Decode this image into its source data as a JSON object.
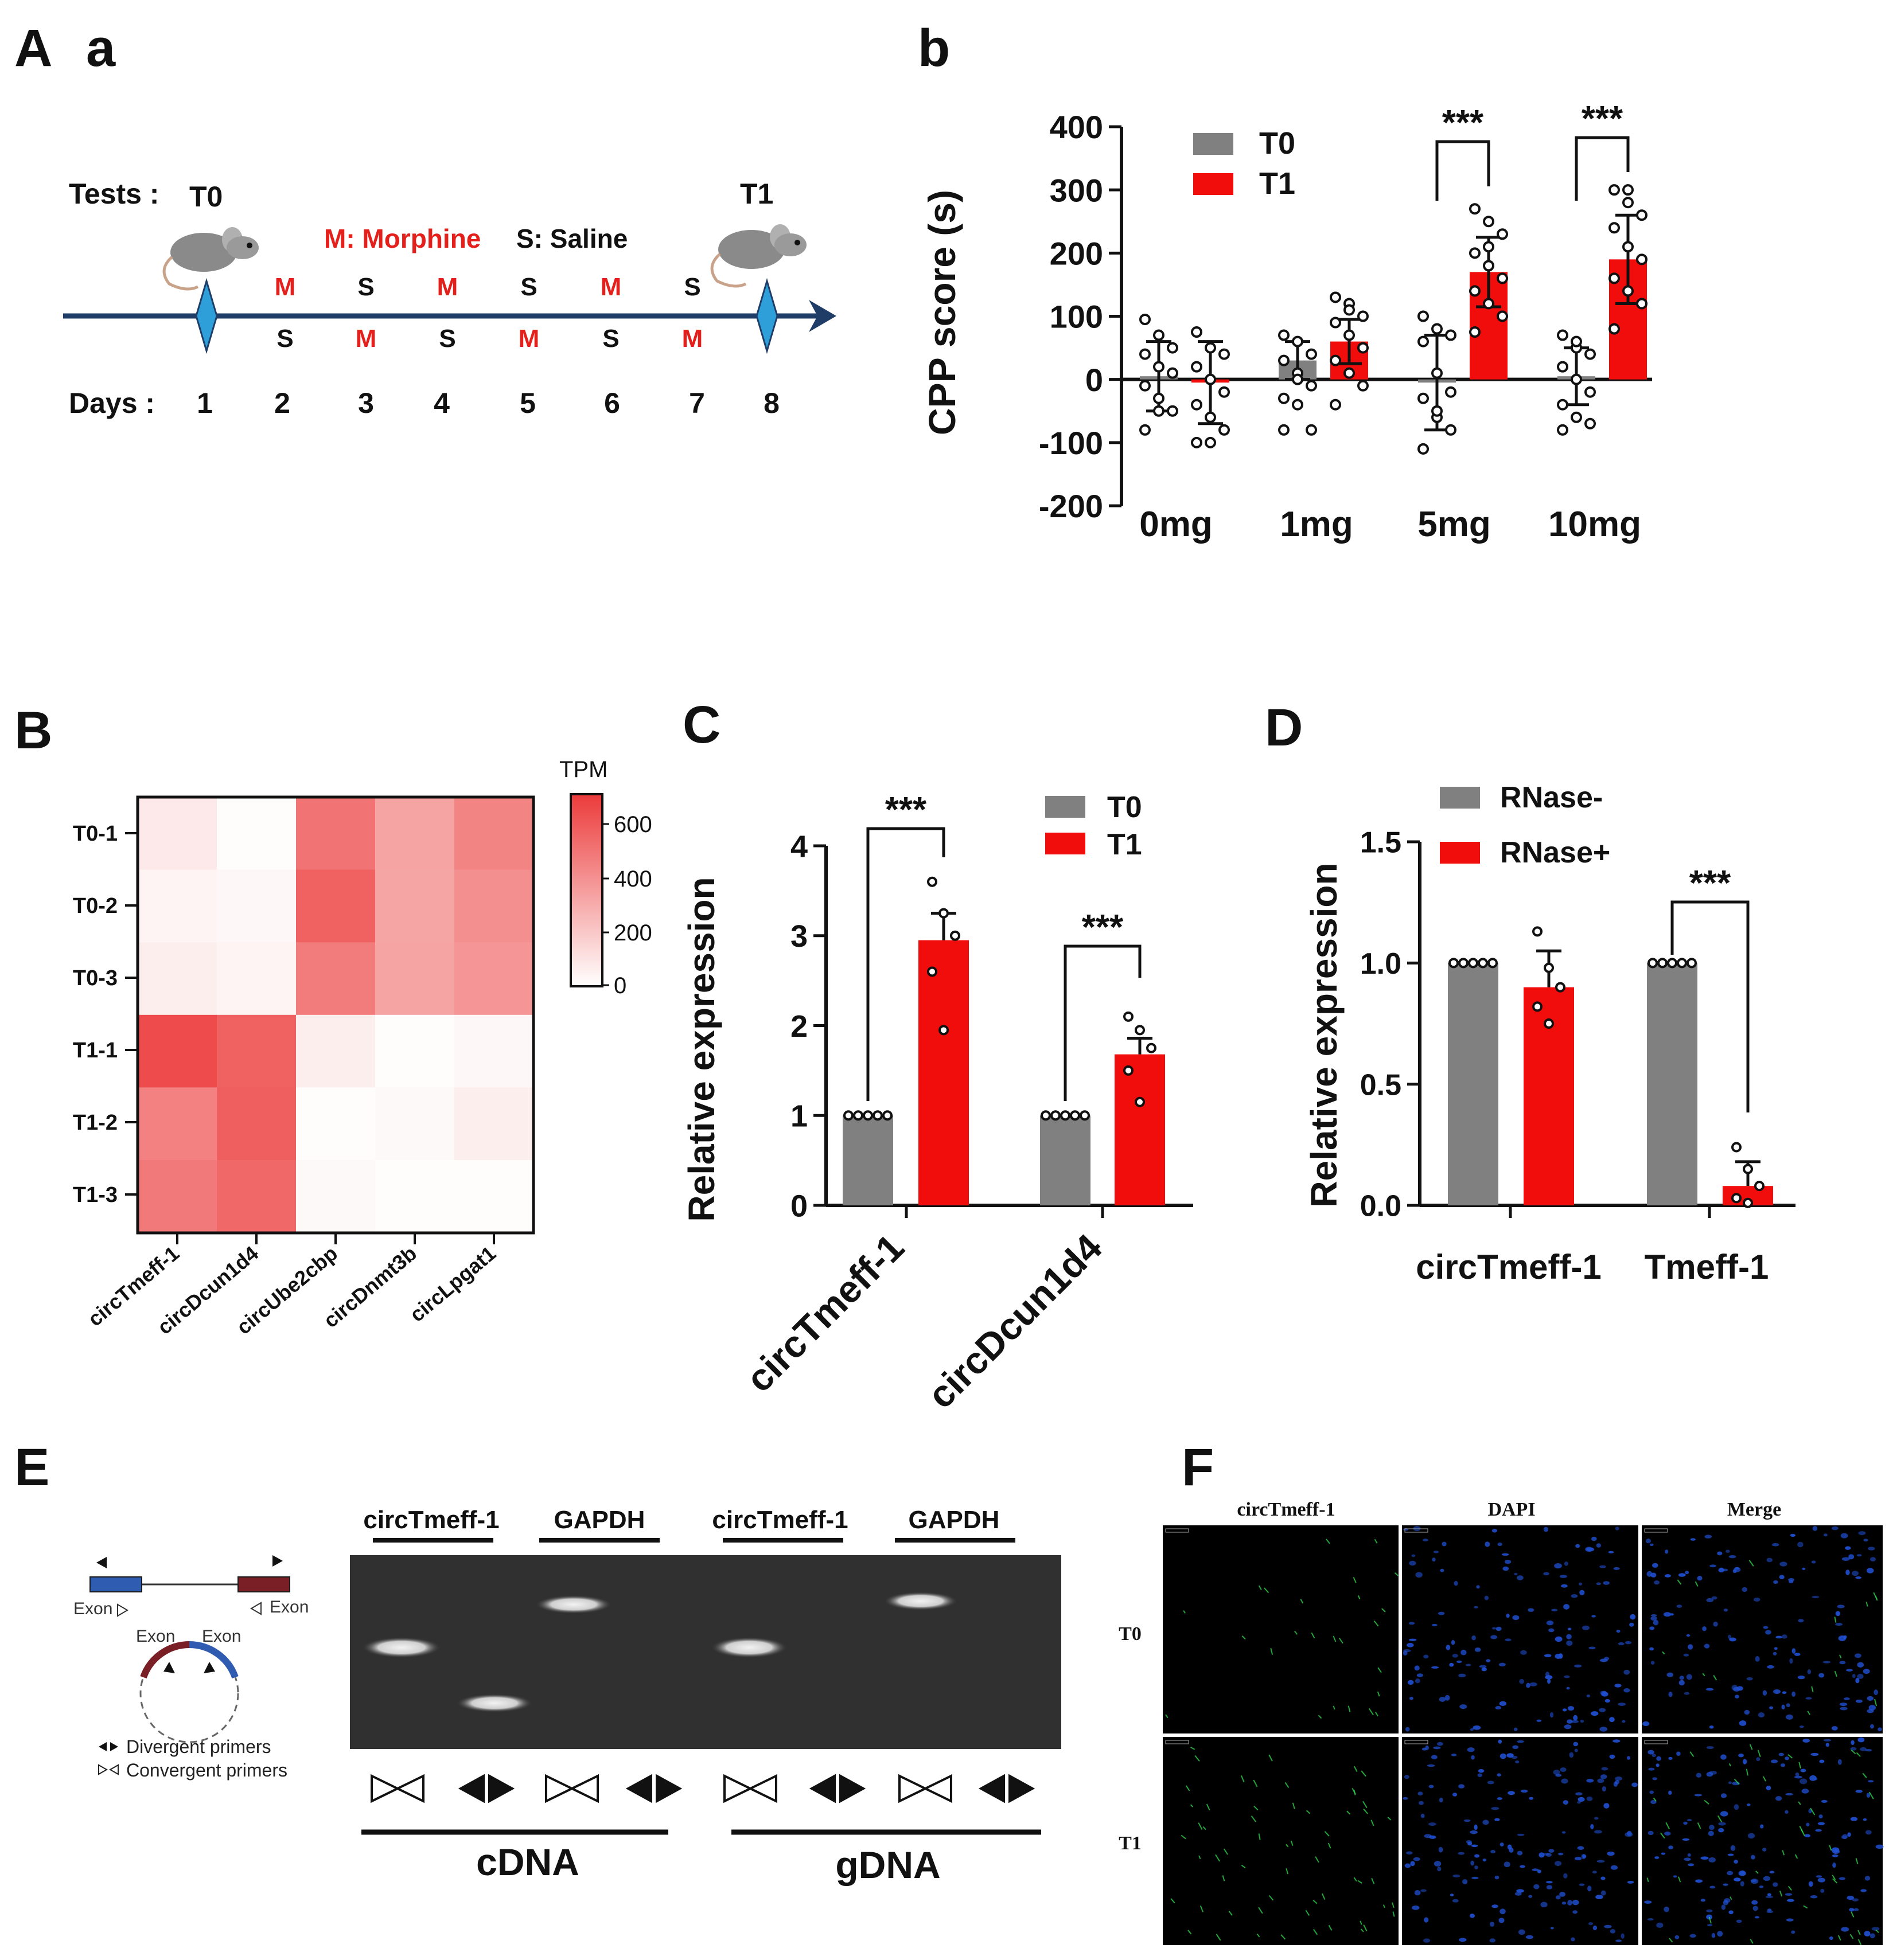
{
  "colors": {
    "t0": "#808080",
    "t1": "#f20d0d",
    "arrow": "#1f3d66",
    "diamond": "#2e9fd8",
    "red_text": "#e3201b",
    "heat_high": "#ec3b3b"
  },
  "panel_labels": {
    "A": "A",
    "a": "a",
    "b": "b",
    "B": "B",
    "C": "C",
    "D": "D",
    "E": "E",
    "F": "F"
  },
  "timeline": {
    "tests_label": "Tests :",
    "t0_label": "T0",
    "t1_label": "T1",
    "legend_m": "M: Morphine",
    "legend_s": "S: Saline",
    "days_label": "Days :",
    "days": [
      "1",
      "2",
      "3",
      "4",
      "5",
      "6",
      "7",
      "8"
    ],
    "top_row": [
      "M",
      "S",
      "M",
      "S",
      "M",
      "S"
    ],
    "bottom_row": [
      "S",
      "M",
      "S",
      "M",
      "S",
      "M"
    ]
  },
  "chart_b": {
    "chart_data": {
      "type": "bar",
      "ylabel": "CPP score (s)",
      "ylim": [
        -200,
        400
      ],
      "yticks": [
        "400",
        "300",
        "200",
        "100",
        "0",
        "-100",
        "-200"
      ],
      "categories": [
        "0mg",
        "1mg",
        "5mg",
        "10mg"
      ],
      "series": [
        {
          "name": "T0",
          "values": [
            5,
            30,
            -5,
            5
          ],
          "err": [
            55,
            30,
            75,
            45
          ]
        },
        {
          "name": "T1",
          "values": [
            -5,
            60,
            170,
            190
          ],
          "err": [
            65,
            35,
            55,
            70
          ]
        }
      ],
      "points": {
        "T0": [
          [
            95,
            70,
            50,
            40,
            20,
            10,
            -10,
            -30,
            -50,
            -80,
            -50
          ],
          [
            70,
            60,
            40,
            30,
            10,
            -10,
            -30,
            -40,
            -80,
            -80,
            0
          ],
          [
            100,
            80,
            70,
            60,
            10,
            -20,
            -30,
            -60,
            -80,
            -110,
            -50
          ],
          [
            70,
            50,
            40,
            20,
            0,
            -20,
            -40,
            -60,
            -70,
            -80,
            60
          ]
        ],
        "T1": [
          [
            75,
            50,
            40,
            20,
            0,
            -20,
            -40,
            -60,
            -80,
            -100,
            -100
          ],
          [
            130,
            120,
            100,
            90,
            70,
            50,
            30,
            10,
            -10,
            -40,
            110
          ],
          [
            270,
            250,
            230,
            200,
            180,
            160,
            140,
            120,
            100,
            75,
            210
          ],
          [
            300,
            300,
            260,
            240,
            210,
            190,
            160,
            140,
            120,
            80,
            280
          ]
        ]
      },
      "legend": [
        "T0",
        "T1"
      ],
      "significance": [
        {
          "pair": "5mg",
          "label": "***"
        },
        {
          "pair": "10mg",
          "label": "***"
        }
      ]
    }
  },
  "heatmap_B": {
    "chart_data": {
      "type": "heatmap",
      "rows": [
        "T0-1",
        "T0-2",
        "T0-3",
        "T1-1",
        "T1-2",
        "T1-3"
      ],
      "cols": [
        "circTmeff-1",
        "circDcun1d4",
        "circUbe2cbp",
        "circDnmt3b",
        "circLpgat1"
      ],
      "values": [
        [
          80,
          10,
          500,
          330,
          440
        ],
        [
          40,
          30,
          560,
          320,
          400
        ],
        [
          60,
          40,
          470,
          330,
          380
        ],
        [
          640,
          560,
          60,
          10,
          30
        ],
        [
          450,
          570,
          10,
          20,
          60
        ],
        [
          480,
          540,
          20,
          10,
          10
        ]
      ],
      "scale_title": "TPM",
      "scale_ticks": [
        "600",
        "400",
        "200",
        "0"
      ],
      "range": [
        0,
        700
      ]
    }
  },
  "chart_C": {
    "chart_data": {
      "type": "bar",
      "ylabel": "Relative expression",
      "ylim": [
        0,
        4
      ],
      "yticks": [
        "4",
        "3",
        "2",
        "1",
        "0"
      ],
      "categories": [
        "circTmeff-1",
        "circDcun1d4"
      ],
      "series": [
        {
          "name": "T0",
          "values": [
            1.0,
            1.0
          ],
          "err": [
            0,
            0
          ]
        },
        {
          "name": "T1",
          "values": [
            2.95,
            1.68
          ],
          "err": [
            0.3,
            0.18
          ]
        }
      ],
      "points": {
        "T0": [
          [
            1,
            1,
            1,
            1,
            1
          ],
          [
            1,
            1,
            1,
            1,
            1
          ]
        ],
        "T1": [
          [
            3.6,
            3.25,
            3.0,
            2.6,
            1.95
          ],
          [
            2.1,
            1.95,
            1.75,
            1.5,
            1.15
          ]
        ]
      },
      "legend": [
        "T0",
        "T1"
      ],
      "significance": [
        {
          "pair": "circTmeff-1",
          "label": "***"
        },
        {
          "pair": "circDcun1d4",
          "label": "***"
        }
      ]
    }
  },
  "chart_D": {
    "chart_data": {
      "type": "bar",
      "ylabel": "Relative expression",
      "ylim": [
        0,
        1.5
      ],
      "yticks": [
        "1.5",
        "1.0",
        "0.5",
        "0.0"
      ],
      "categories": [
        "circTmeff-1",
        "Tmeff-1"
      ],
      "series": [
        {
          "name": "RNase-",
          "values": [
            1.0,
            1.0
          ],
          "err": [
            0,
            0
          ]
        },
        {
          "name": "RNase+",
          "values": [
            0.9,
            0.08
          ],
          "err": [
            0.15,
            0.1
          ]
        }
      ],
      "points": {
        "RNase-": [
          [
            1,
            1,
            1,
            1,
            1
          ],
          [
            1,
            1,
            1,
            1,
            1
          ]
        ],
        "RNase+": [
          [
            1.13,
            0.98,
            0.9,
            0.82,
            0.75
          ],
          [
            0.24,
            0.15,
            0.08,
            0.03,
            0.01
          ]
        ]
      },
      "legend": [
        "RNase-",
        "RNase+"
      ],
      "significance": [
        {
          "pair": "Tmeff-1",
          "label": "***"
        }
      ]
    }
  },
  "panel_E": {
    "lane_groups": [
      "circTmeff-1",
      "GAPDH",
      "circTmeff-1",
      "GAPDH"
    ],
    "exon_label": "Exon",
    "divergent": "Divergent primers",
    "convergent": "Convergent primers",
    "cdna": "cDNA",
    "gdna": "gDNA"
  },
  "panel_F": {
    "columns": [
      "circTmeff-1",
      "DAPI",
      "Merge"
    ],
    "rows": [
      "T0",
      "T1"
    ]
  }
}
